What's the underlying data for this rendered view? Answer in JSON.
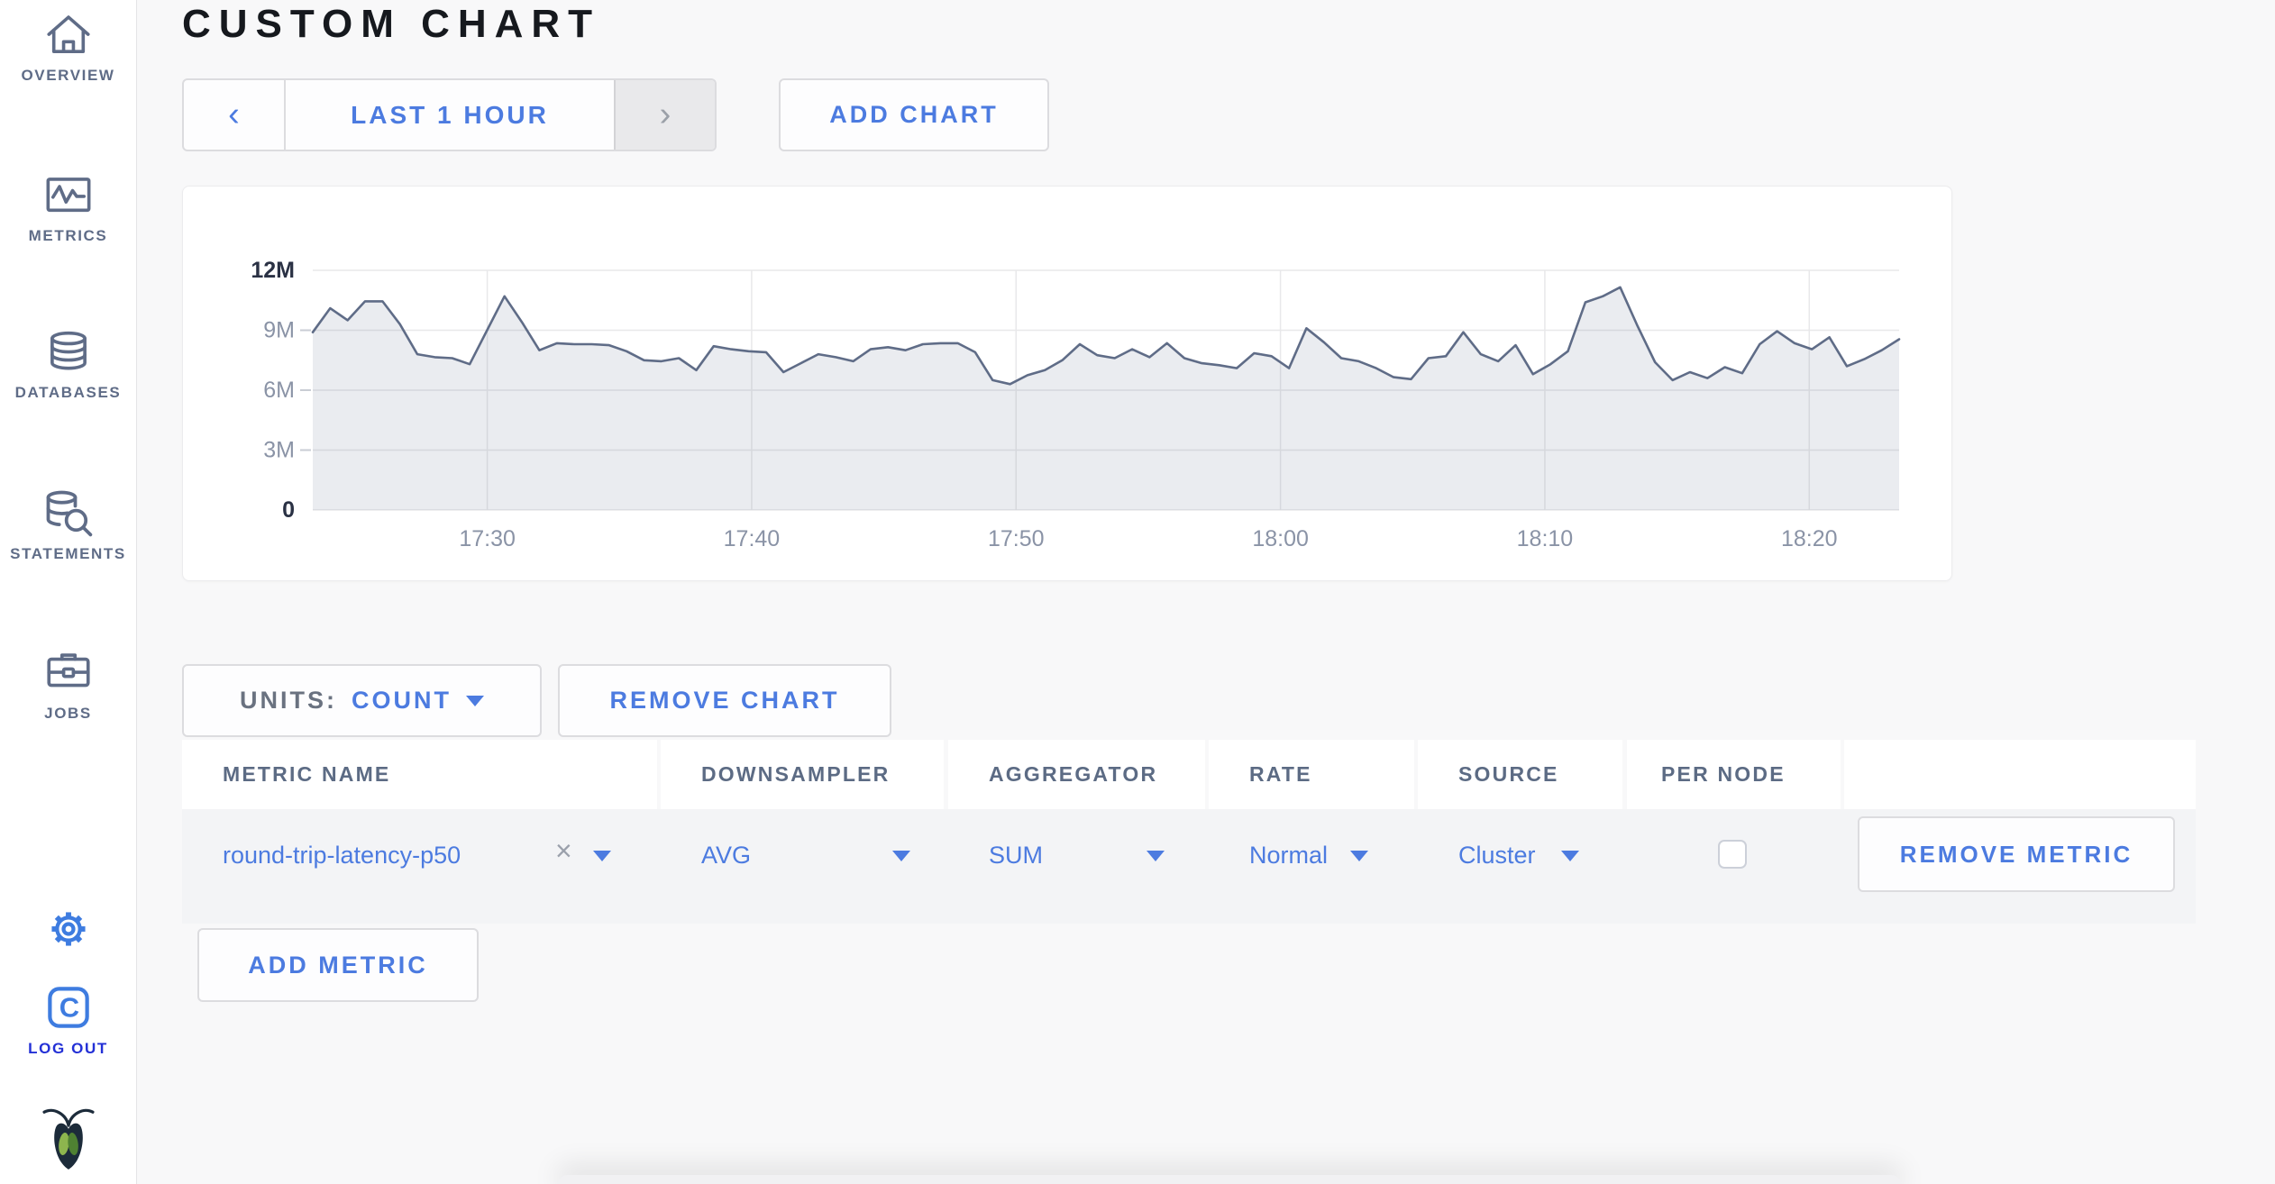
{
  "colors": {
    "accent_blue": "#4c7be0",
    "sidebar_slate": "#5f6c87",
    "logout_blue": "#2330d6",
    "logo_blue": "#3e7ce0",
    "line_color": "#5f6c87",
    "fill_color": "rgba(96,109,136,0.13)",
    "grid_color": "#e8e8ea",
    "axis_label": "#8a93a6",
    "axis_label_dark": "#2a3144"
  },
  "sidebar": {
    "items": [
      {
        "label": "OVERVIEW",
        "icon": "home-icon"
      },
      {
        "label": "METRICS",
        "icon": "metrics-icon"
      },
      {
        "label": "DATABASES",
        "icon": "database-icon"
      },
      {
        "label": "STATEMENTS",
        "icon": "statements-icon"
      },
      {
        "label": "JOBS",
        "icon": "jobs-icon"
      }
    ],
    "logout_label": "LOG OUT"
  },
  "header": {
    "title": "CUSTOM CHART",
    "time_range": {
      "prev": "‹",
      "label": "LAST 1 HOUR",
      "next": "›"
    },
    "add_chart_label": "ADD CHART"
  },
  "controls": {
    "units_label": "UNITS:",
    "units_value": "COUNT",
    "remove_chart_label": "REMOVE CHART",
    "add_metric_label": "ADD METRIC"
  },
  "table": {
    "columns": [
      "METRIC NAME",
      "DOWNSAMPLER",
      "AGGREGATOR",
      "RATE",
      "SOURCE",
      "PER NODE",
      ""
    ],
    "row": {
      "metric_name": "round-trip-latency-p50",
      "close_glyph": "×",
      "downsampler": "AVG",
      "aggregator": "SUM",
      "rate": "Normal",
      "source": "Cluster",
      "per_node_checked": false,
      "remove_label": "REMOVE METRIC"
    }
  },
  "chart_data": {
    "type": "area",
    "title": "",
    "series": [
      {
        "name": "round-trip-latency-p50 (AVG, SUM, Normal, Cluster)",
        "unit": "count, millions",
        "values": [
          8.9,
          10.1,
          9.5,
          10.45,
          10.45,
          9.3,
          7.8,
          7.65,
          7.6,
          7.3,
          9.0,
          10.7,
          9.4,
          8.0,
          8.35,
          8.3,
          8.3,
          8.25,
          7.95,
          7.5,
          7.45,
          7.6,
          7.0,
          8.2,
          8.05,
          7.95,
          7.9,
          6.9,
          7.35,
          7.8,
          7.65,
          7.45,
          8.05,
          8.15,
          8.0,
          8.3,
          8.35,
          8.35,
          7.9,
          6.5,
          6.3,
          6.75,
          7.0,
          7.5,
          8.3,
          7.75,
          7.6,
          8.05,
          7.65,
          8.35,
          7.6,
          7.35,
          7.25,
          7.1,
          7.85,
          7.7,
          7.1,
          9.1,
          8.4,
          7.6,
          7.45,
          7.1,
          6.65,
          6.55,
          7.6,
          7.7,
          8.9,
          7.8,
          7.45,
          8.25,
          6.8,
          7.3,
          7.95,
          10.4,
          10.7,
          11.15,
          9.2,
          7.4,
          6.5,
          6.9,
          6.6,
          7.15,
          6.85,
          8.3,
          8.95,
          8.35,
          8.05,
          8.65,
          7.2,
          7.55,
          8.0,
          8.55
        ]
      }
    ],
    "ylim": [
      0,
      12
    ],
    "yticks": [
      {
        "label": "0",
        "value": 0
      },
      {
        "label": "3M",
        "value": 3
      },
      {
        "label": "6M",
        "value": 6
      },
      {
        "label": "9M",
        "value": 9
      },
      {
        "label": "12M",
        "value": 12
      }
    ],
    "x_domain_minutes": [
      0,
      60
    ],
    "x_window": "17:23 - 18:23",
    "xticks": [
      {
        "label": "17:30",
        "minute": 6.6
      },
      {
        "label": "17:40",
        "minute": 16.6
      },
      {
        "label": "17:50",
        "minute": 26.6
      },
      {
        "label": "18:00",
        "minute": 36.6
      },
      {
        "label": "18:10",
        "minute": 46.6
      },
      {
        "label": "18:20",
        "minute": 56.6
      }
    ],
    "grid": true,
    "legend": "none"
  }
}
